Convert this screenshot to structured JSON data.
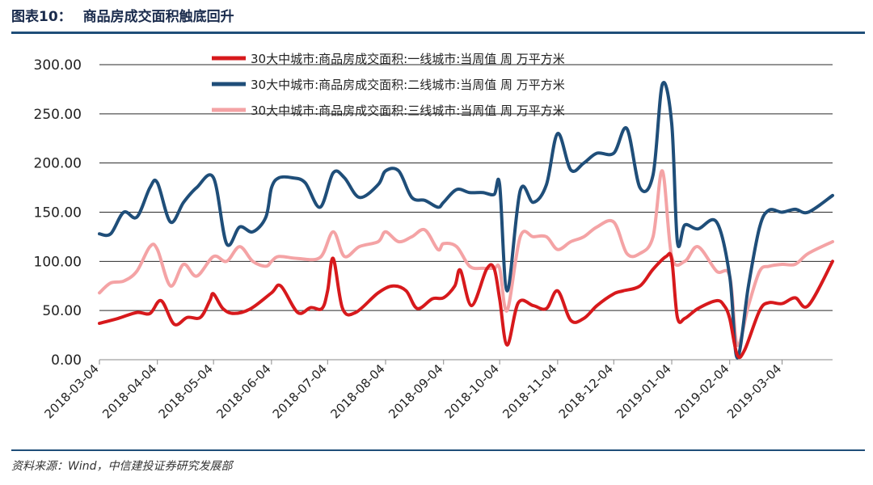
{
  "header": {
    "figure_number": "图表10：",
    "title": "商品房成交面积触底回升"
  },
  "footer": {
    "source": "资料来源：Wind，中信建投证券研究发展部"
  },
  "chart_data": {
    "type": "line",
    "title": "商品房成交面积触底回升",
    "xlabel": "",
    "ylabel": "",
    "ylim": [
      0,
      300
    ],
    "yticks": [
      "0.00",
      "50.00",
      "100.00",
      "150.00",
      "200.00",
      "250.00",
      "300.00"
    ],
    "x_ticks": [
      "2018-03-04",
      "2018-04-04",
      "2018-05-04",
      "2018-06-04",
      "2018-07-04",
      "2018-08-04",
      "2018-09-04",
      "2018-10-04",
      "2018-11-04",
      "2018-12-04",
      "2019-01-04",
      "2019-02-04",
      "2019-03-04"
    ],
    "x_range": [
      "2018-03-04",
      "2019-03-31"
    ],
    "grid": "horizontal",
    "legend_position": "top",
    "colors": [
      "#d7191c",
      "#1f4e79",
      "#f4a3a5"
    ],
    "series": [
      {
        "name": "30大中城市:商品房成交面积:一线城市:当周值  周  万平方米",
        "points": [
          [
            "2018-03-04",
            37
          ],
          [
            "2018-03-14",
            42
          ],
          [
            "2018-03-24",
            48
          ],
          [
            "2018-03-31",
            47
          ],
          [
            "2018-04-06",
            60
          ],
          [
            "2018-04-13",
            36
          ],
          [
            "2018-04-20",
            43
          ],
          [
            "2018-04-27",
            43
          ],
          [
            "2018-05-02",
            60
          ],
          [
            "2018-05-04",
            67
          ],
          [
            "2018-05-09",
            52
          ],
          [
            "2018-05-15",
            47
          ],
          [
            "2018-05-24",
            52
          ],
          [
            "2018-06-04",
            68
          ],
          [
            "2018-06-09",
            75
          ],
          [
            "2018-06-18",
            48
          ],
          [
            "2018-06-25",
            53
          ],
          [
            "2018-07-01",
            52
          ],
          [
            "2018-07-04",
            70
          ],
          [
            "2018-07-07",
            103
          ],
          [
            "2018-07-12",
            52
          ],
          [
            "2018-07-19",
            48
          ],
          [
            "2018-07-31",
            68
          ],
          [
            "2018-08-08",
            75
          ],
          [
            "2018-08-15",
            70
          ],
          [
            "2018-08-21",
            52
          ],
          [
            "2018-08-29",
            62
          ],
          [
            "2018-09-04",
            63
          ],
          [
            "2018-09-10",
            75
          ],
          [
            "2018-09-13",
            91
          ],
          [
            "2018-09-19",
            55
          ],
          [
            "2018-09-27",
            92
          ],
          [
            "2018-10-01",
            93
          ],
          [
            "2018-10-04",
            62
          ],
          [
            "2018-10-08",
            15
          ],
          [
            "2018-10-14",
            58
          ],
          [
            "2018-10-22",
            55
          ],
          [
            "2018-10-29",
            52
          ],
          [
            "2018-11-04",
            70
          ],
          [
            "2018-11-11",
            40
          ],
          [
            "2018-11-18",
            42
          ],
          [
            "2018-11-25",
            55
          ],
          [
            "2018-12-04",
            67
          ],
          [
            "2018-12-09",
            70
          ],
          [
            "2018-12-18",
            75
          ],
          [
            "2018-12-25",
            92
          ],
          [
            "2019-01-01",
            105
          ],
          [
            "2019-01-04",
            102
          ],
          [
            "2019-01-07",
            43
          ],
          [
            "2019-01-11",
            42
          ],
          [
            "2019-01-18",
            52
          ],
          [
            "2019-01-28",
            60
          ],
          [
            "2019-02-01",
            55
          ],
          [
            "2019-02-04",
            42
          ],
          [
            "2019-02-08",
            5
          ],
          [
            "2019-02-12",
            10
          ],
          [
            "2019-02-20",
            50
          ],
          [
            "2019-02-25",
            58
          ],
          [
            "2019-03-04",
            57
          ],
          [
            "2019-03-11",
            63
          ],
          [
            "2019-03-18",
            55
          ],
          [
            "2019-03-31",
            100
          ]
        ]
      },
      {
        "name": "30大中城市:商品房成交面积:二线城市:当周值  周  万平方米",
        "points": [
          [
            "2018-03-04",
            128
          ],
          [
            "2018-03-10",
            128
          ],
          [
            "2018-03-17",
            150
          ],
          [
            "2018-03-24",
            145
          ],
          [
            "2018-03-31",
            175
          ],
          [
            "2018-04-04",
            180
          ],
          [
            "2018-04-11",
            140
          ],
          [
            "2018-04-18",
            160
          ],
          [
            "2018-04-25",
            175
          ],
          [
            "2018-05-04",
            185
          ],
          [
            "2018-05-11",
            118
          ],
          [
            "2018-05-18",
            135
          ],
          [
            "2018-05-25",
            130
          ],
          [
            "2018-06-01",
            145
          ],
          [
            "2018-06-04",
            175
          ],
          [
            "2018-06-08",
            185
          ],
          [
            "2018-06-15",
            185
          ],
          [
            "2018-06-22",
            180
          ],
          [
            "2018-06-30",
            155
          ],
          [
            "2018-07-07",
            190
          ],
          [
            "2018-07-13",
            185
          ],
          [
            "2018-07-21",
            165
          ],
          [
            "2018-07-31",
            178
          ],
          [
            "2018-08-04",
            192
          ],
          [
            "2018-08-11",
            192
          ],
          [
            "2018-08-18",
            165
          ],
          [
            "2018-08-25",
            162
          ],
          [
            "2018-09-01",
            155
          ],
          [
            "2018-09-04",
            160
          ],
          [
            "2018-09-11",
            173
          ],
          [
            "2018-09-18",
            170
          ],
          [
            "2018-09-25",
            170
          ],
          [
            "2018-10-01",
            168
          ],
          [
            "2018-10-04",
            178
          ],
          [
            "2018-10-08",
            70
          ],
          [
            "2018-10-15",
            172
          ],
          [
            "2018-10-22",
            160
          ],
          [
            "2018-10-29",
            178
          ],
          [
            "2018-11-04",
            230
          ],
          [
            "2018-11-11",
            193
          ],
          [
            "2018-11-18",
            200
          ],
          [
            "2018-11-25",
            210
          ],
          [
            "2018-12-04",
            210
          ],
          [
            "2018-12-11",
            235
          ],
          [
            "2018-12-18",
            175
          ],
          [
            "2018-12-25",
            188
          ],
          [
            "2018-12-30",
            280
          ],
          [
            "2019-01-04",
            240
          ],
          [
            "2019-01-07",
            120
          ],
          [
            "2019-01-11",
            137
          ],
          [
            "2019-01-18",
            133
          ],
          [
            "2019-01-28",
            140
          ],
          [
            "2019-02-04",
            85
          ],
          [
            "2019-02-08",
            2
          ],
          [
            "2019-02-14",
            75
          ],
          [
            "2019-02-20",
            135
          ],
          [
            "2019-02-25",
            152
          ],
          [
            "2019-03-04",
            150
          ],
          [
            "2019-03-11",
            153
          ],
          [
            "2019-03-18",
            150
          ],
          [
            "2019-03-31",
            167
          ]
        ]
      },
      {
        "name": "30大中城市:商品房成交面积:三线城市:当周值  周  万平方米",
        "points": [
          [
            "2018-03-04",
            68
          ],
          [
            "2018-03-10",
            78
          ],
          [
            "2018-03-17",
            80
          ],
          [
            "2018-03-24",
            90
          ],
          [
            "2018-03-31",
            115
          ],
          [
            "2018-04-04",
            112
          ],
          [
            "2018-04-11",
            75
          ],
          [
            "2018-04-18",
            97
          ],
          [
            "2018-04-25",
            85
          ],
          [
            "2018-05-04",
            105
          ],
          [
            "2018-05-11",
            100
          ],
          [
            "2018-05-18",
            115
          ],
          [
            "2018-05-25",
            100
          ],
          [
            "2018-06-01",
            95
          ],
          [
            "2018-06-04",
            100
          ],
          [
            "2018-06-08",
            105
          ],
          [
            "2018-06-18",
            103
          ],
          [
            "2018-06-30",
            104
          ],
          [
            "2018-07-07",
            130
          ],
          [
            "2018-07-13",
            105
          ],
          [
            "2018-07-21",
            115
          ],
          [
            "2018-07-31",
            120
          ],
          [
            "2018-08-04",
            130
          ],
          [
            "2018-08-11",
            120
          ],
          [
            "2018-08-18",
            125
          ],
          [
            "2018-08-25",
            132
          ],
          [
            "2018-09-01",
            112
          ],
          [
            "2018-09-04",
            118
          ],
          [
            "2018-09-11",
            115
          ],
          [
            "2018-09-18",
            95
          ],
          [
            "2018-09-25",
            93
          ],
          [
            "2018-10-01",
            93
          ],
          [
            "2018-10-04",
            93
          ],
          [
            "2018-10-08",
            50
          ],
          [
            "2018-10-15",
            125
          ],
          [
            "2018-10-22",
            125
          ],
          [
            "2018-10-29",
            125
          ],
          [
            "2018-11-04",
            112
          ],
          [
            "2018-11-11",
            120
          ],
          [
            "2018-11-18",
            125
          ],
          [
            "2018-11-25",
            135
          ],
          [
            "2018-12-04",
            140
          ],
          [
            "2018-12-11",
            108
          ],
          [
            "2018-12-18",
            108
          ],
          [
            "2018-12-25",
            125
          ],
          [
            "2018-12-30",
            192
          ],
          [
            "2019-01-04",
            105
          ],
          [
            "2019-01-11",
            100
          ],
          [
            "2019-01-18",
            115
          ],
          [
            "2019-01-28",
            90
          ],
          [
            "2019-02-04",
            85
          ],
          [
            "2019-02-08",
            15
          ],
          [
            "2019-02-14",
            55
          ],
          [
            "2019-02-20",
            90
          ],
          [
            "2019-02-25",
            95
          ],
          [
            "2019-03-04",
            97
          ],
          [
            "2019-03-11",
            97
          ],
          [
            "2019-03-18",
            108
          ],
          [
            "2019-03-31",
            120
          ]
        ]
      }
    ]
  }
}
